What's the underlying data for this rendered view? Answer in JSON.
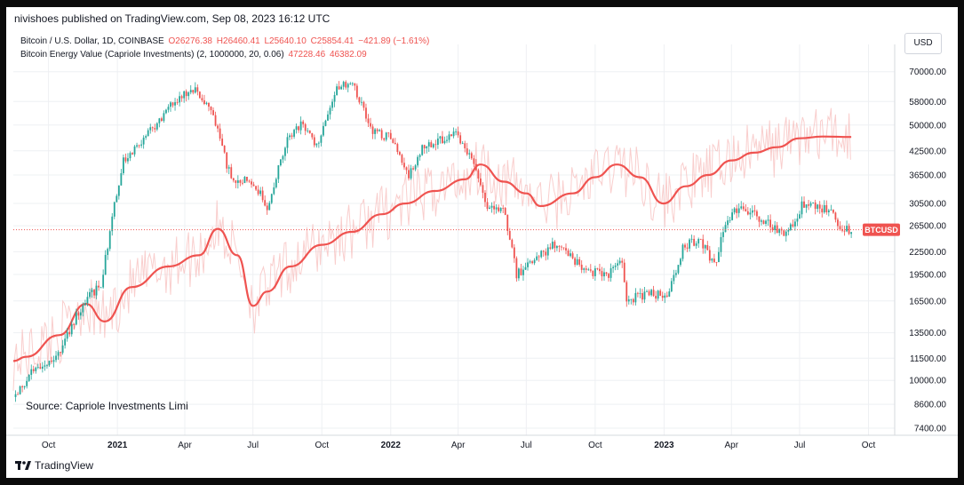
{
  "header": {
    "published": "nivishoes published on TradingView.com, Sep 08, 2023 16:12 UTC"
  },
  "legend": {
    "symbol": "Bitcoin / U.S. Dollar, 1D, COINBASE",
    "open": "O26276.38",
    "high": "H26460.41",
    "low": "L25640.10",
    "close": "C25854.41",
    "change": "−421.89 (−1.61%)",
    "indicator": "Bitcoin Energy Value (Capriole Investments) (2, 1000000, 20, 0.06)",
    "indicator_val1": "47228.46",
    "indicator_val2": "46382.09"
  },
  "currency_button": "USD",
  "price_badge": "BTCUSD",
  "source_note": "Source: Capriole Investments Limi",
  "footer": {
    "brand": "TradingView"
  },
  "colors": {
    "accent_red": "#ef5350",
    "up_candle": "#26a69a",
    "down_candle": "#ef5350",
    "grid": "#eef0f3"
  },
  "chart_data": {
    "type": "line",
    "y_scale": "log",
    "ylim": [
      7400,
      76000
    ],
    "xlim": [
      "2020-08-15",
      "2023-11-05"
    ],
    "y_ticks": [
      "70000.00",
      "58000.00",
      "50000.00",
      "42500.00",
      "36500.00",
      "30500.00",
      "26500.00",
      "22500.00",
      "19500.00",
      "16500.00",
      "13500.00",
      "11500.00",
      "10000.00",
      "8600.00",
      "7400.00"
    ],
    "x_ticks": [
      {
        "label": "Oct",
        "date": "2020-10-01"
      },
      {
        "label": "2021",
        "date": "2021-01-01"
      },
      {
        "label": "Apr",
        "date": "2021-04-01"
      },
      {
        "label": "Jul",
        "date": "2021-07-01"
      },
      {
        "label": "Oct",
        "date": "2021-10-01"
      },
      {
        "label": "2022",
        "date": "2022-01-01"
      },
      {
        "label": "Apr",
        "date": "2022-04-01"
      },
      {
        "label": "Jul",
        "date": "2022-07-01"
      },
      {
        "label": "Oct",
        "date": "2022-10-01"
      },
      {
        "label": "2023",
        "date": "2023-01-01"
      },
      {
        "label": "Apr",
        "date": "2023-04-01"
      },
      {
        "label": "Jul",
        "date": "2023-07-01"
      },
      {
        "label": "Oct",
        "date": "2023-10-01"
      }
    ],
    "series": [
      {
        "name": "BTCUSD",
        "style": "candles",
        "x": [
          "2020-08-15",
          "2020-09-10",
          "2020-10-10",
          "2020-11-10",
          "2020-12-10",
          "2021-01-08",
          "2021-02-10",
          "2021-03-10",
          "2021-04-14",
          "2021-05-10",
          "2021-06-01",
          "2021-07-01",
          "2021-07-20",
          "2021-08-15",
          "2021-09-06",
          "2021-09-25",
          "2021-10-20",
          "2021-11-10",
          "2021-12-05",
          "2022-01-01",
          "2022-01-24",
          "2022-02-10",
          "2022-03-28",
          "2022-04-20",
          "2022-05-12",
          "2022-06-01",
          "2022-06-18",
          "2022-07-15",
          "2022-08-12",
          "2022-09-10",
          "2022-10-15",
          "2022-11-05",
          "2022-11-12",
          "2022-12-15",
          "2023-01-05",
          "2023-01-28",
          "2023-02-20",
          "2023-03-10",
          "2023-03-25",
          "2023-04-14",
          "2023-05-10",
          "2023-06-15",
          "2023-07-05",
          "2023-07-20",
          "2023-08-15",
          "2023-08-22",
          "2023-09-08"
        ],
        "values": [
          9000,
          10600,
          11300,
          15500,
          18500,
          40000,
          47000,
          56000,
          63000,
          52000,
          36000,
          35000,
          30000,
          46000,
          51000,
          43000,
          62000,
          67000,
          49000,
          46000,
          36000,
          43000,
          47000,
          40000,
          29000,
          30000,
          19500,
          21500,
          24000,
          20500,
          19300,
          21200,
          16600,
          17300,
          16900,
          23500,
          24000,
          20500,
          27500,
          30200,
          27500,
          25000,
          30500,
          30000,
          29000,
          26000,
          25854
        ]
      },
      {
        "name": "Bitcoin Energy Value",
        "style": "line",
        "x": [
          "2020-08-15",
          "2020-09-01",
          "2020-10-15",
          "2020-11-20",
          "2020-12-15",
          "2021-01-20",
          "2021-03-10",
          "2021-04-20",
          "2021-05-15",
          "2021-06-10",
          "2021-07-01",
          "2021-07-20",
          "2021-08-20",
          "2021-10-01",
          "2021-11-10",
          "2021-12-20",
          "2022-01-20",
          "2022-03-01",
          "2022-04-10",
          "2022-05-01",
          "2022-06-01",
          "2022-07-01",
          "2022-07-20",
          "2022-09-01",
          "2022-10-01",
          "2022-10-30",
          "2022-11-30",
          "2022-12-31",
          "2023-01-30",
          "2023-03-01",
          "2023-04-01",
          "2023-05-01",
          "2023-06-01",
          "2023-07-01",
          "2023-08-01",
          "2023-09-08"
        ],
        "values": [
          11300,
          11600,
          13300,
          16200,
          14500,
          18000,
          20500,
          22000,
          26000,
          22000,
          16000,
          17500,
          20500,
          23500,
          25500,
          28500,
          30500,
          33000,
          35500,
          39000,
          35000,
          32500,
          30000,
          32500,
          36000,
          39000,
          36000,
          30500,
          34000,
          36500,
          40000,
          42000,
          43500,
          46000,
          46500,
          46382
        ]
      }
    ]
  }
}
